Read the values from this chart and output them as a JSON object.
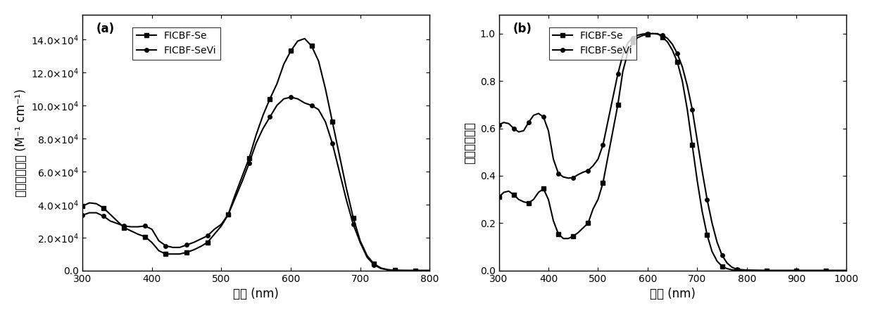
{
  "panel_a": {
    "label": "(a)",
    "xlabel": "波长 (nm)",
    "ylabel": "摩尔吸光系数 (M⁻¹ cm⁻¹)",
    "xlim": [
      300,
      800
    ],
    "ylim": [
      0,
      155000.0
    ],
    "yticks": [
      0.0,
      20000,
      40000,
      60000,
      80000,
      100000,
      120000,
      140000
    ],
    "xticks": [
      300,
      400,
      500,
      600,
      700,
      800
    ],
    "series": [
      {
        "name": "FICBF-Se",
        "marker": "s",
        "x": [
          300,
          310,
          320,
          330,
          340,
          350,
          360,
          370,
          380,
          390,
          400,
          410,
          420,
          430,
          440,
          450,
          460,
          470,
          480,
          490,
          500,
          510,
          520,
          530,
          540,
          550,
          560,
          570,
          580,
          590,
          600,
          610,
          620,
          630,
          640,
          650,
          660,
          670,
          680,
          690,
          700,
          710,
          720,
          730,
          740,
          750,
          760,
          770,
          780,
          790,
          800
        ],
        "y": [
          39000,
          41000,
          40500,
          38000,
          34000,
          30000,
          26000,
          24000,
          22000,
          20500,
          17000,
          12000,
          10000,
          10000,
          10000,
          11000,
          12500,
          14500,
          17000,
          22000,
          27000,
          34000,
          46000,
          57000,
          68000,
          82000,
          94000,
          104000,
          113000,
          125000,
          133000,
          139000,
          140500,
          136000,
          127000,
          110000,
          90000,
          70000,
          50000,
          32000,
          18000,
          9000,
          4000,
          1500,
          500,
          150,
          50,
          15,
          5,
          1,
          0
        ]
      },
      {
        "name": "FICBF-SeVi",
        "marker": "o",
        "x": [
          300,
          310,
          320,
          330,
          340,
          350,
          360,
          370,
          380,
          390,
          400,
          410,
          420,
          430,
          440,
          450,
          460,
          470,
          480,
          490,
          500,
          510,
          520,
          530,
          540,
          550,
          560,
          570,
          580,
          590,
          600,
          610,
          620,
          630,
          640,
          650,
          660,
          670,
          680,
          690,
          700,
          710,
          720,
          730,
          740,
          750,
          760,
          770,
          780,
          790,
          800
        ],
        "y": [
          33500,
          35000,
          35000,
          33000,
          30000,
          28500,
          27000,
          26500,
          26500,
          27000,
          25000,
          18000,
          15000,
          14000,
          14000,
          15500,
          17000,
          19000,
          21000,
          25000,
          28000,
          34000,
          44000,
          54000,
          65000,
          77000,
          86000,
          93000,
          100000,
          104000,
          105000,
          104000,
          101500,
          100000,
          97500,
          90000,
          77000,
          60000,
          43000,
          28000,
          17000,
          8000,
          3500,
          1200,
          400,
          120,
          35,
          10,
          3,
          1,
          0
        ]
      }
    ]
  },
  "panel_b": {
    "label": "(b)",
    "xlabel": "波长 (nm)",
    "ylabel": "归一化吸光度",
    "xlim": [
      300,
      1000
    ],
    "ylim": [
      0,
      1.08
    ],
    "yticks": [
      0.0,
      0.2,
      0.4,
      0.6,
      0.8,
      1.0
    ],
    "xticks": [
      300,
      400,
      500,
      600,
      700,
      800,
      900,
      1000
    ],
    "series": [
      {
        "name": "FICBF-Se",
        "marker": "s",
        "x": [
          300,
          310,
          320,
          330,
          340,
          350,
          360,
          370,
          380,
          390,
          400,
          410,
          420,
          430,
          440,
          450,
          460,
          470,
          480,
          490,
          500,
          510,
          520,
          530,
          540,
          550,
          560,
          570,
          580,
          590,
          600,
          610,
          620,
          630,
          640,
          650,
          660,
          670,
          680,
          690,
          700,
          710,
          720,
          730,
          740,
          750,
          760,
          770,
          780,
          800,
          820,
          840,
          860,
          880,
          900,
          920,
          940,
          960,
          980,
          1000
        ],
        "y": [
          0.31,
          0.33,
          0.335,
          0.32,
          0.3,
          0.29,
          0.285,
          0.3,
          0.33,
          0.345,
          0.3,
          0.21,
          0.155,
          0.135,
          0.135,
          0.145,
          0.16,
          0.18,
          0.2,
          0.26,
          0.3,
          0.37,
          0.48,
          0.59,
          0.7,
          0.84,
          0.92,
          0.965,
          0.983,
          0.992,
          0.997,
          1.0,
          1.0,
          0.985,
          0.965,
          0.93,
          0.88,
          0.8,
          0.68,
          0.53,
          0.38,
          0.25,
          0.15,
          0.08,
          0.04,
          0.018,
          0.008,
          0.003,
          0.001,
          0.0,
          0.0,
          0.0,
          0.0,
          0.0,
          0.0,
          0.0,
          0.0,
          0.0,
          0.0,
          0.0
        ]
      },
      {
        "name": "FICBF-SeVi",
        "marker": "o",
        "x": [
          300,
          310,
          320,
          330,
          340,
          350,
          360,
          370,
          380,
          390,
          400,
          410,
          420,
          430,
          440,
          450,
          460,
          470,
          480,
          490,
          500,
          510,
          520,
          530,
          540,
          550,
          560,
          570,
          580,
          590,
          600,
          610,
          620,
          630,
          640,
          650,
          660,
          670,
          680,
          690,
          700,
          710,
          720,
          730,
          740,
          750,
          760,
          770,
          780,
          800,
          820,
          840,
          860,
          880,
          900,
          920,
          940,
          960,
          980,
          1000
        ],
        "y": [
          0.615,
          0.625,
          0.62,
          0.6,
          0.585,
          0.59,
          0.625,
          0.655,
          0.663,
          0.648,
          0.59,
          0.47,
          0.41,
          0.395,
          0.39,
          0.392,
          0.405,
          0.415,
          0.422,
          0.442,
          0.47,
          0.53,
          0.63,
          0.73,
          0.83,
          0.91,
          0.96,
          0.983,
          0.993,
          0.998,
          1.0,
          1.0,
          0.998,
          0.993,
          0.98,
          0.955,
          0.915,
          0.86,
          0.78,
          0.68,
          0.55,
          0.42,
          0.3,
          0.2,
          0.12,
          0.065,
          0.032,
          0.014,
          0.005,
          0.002,
          0.001,
          0.0,
          0.0,
          0.0,
          0.0,
          0.0,
          0.0,
          0.0,
          0.0,
          0.0
        ]
      }
    ]
  },
  "line_color": "#000000",
  "marker_size": 4,
  "line_width": 1.5,
  "marker_every": 3,
  "font_size_label": 12,
  "font_size_tick": 10,
  "font_size_legend": 10,
  "font_size_panel_label": 12
}
